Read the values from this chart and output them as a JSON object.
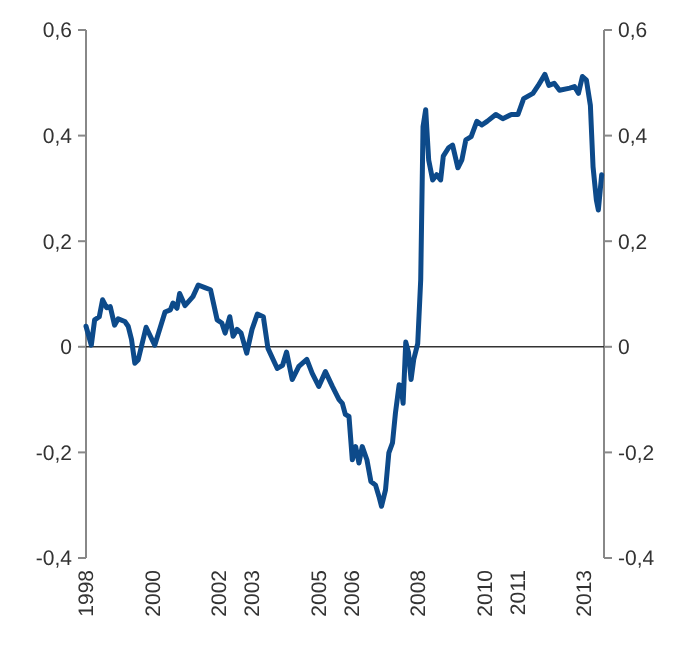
{
  "chart_data": {
    "type": "line",
    "x": [
      1998.0,
      1998.16,
      1998.26,
      1998.4,
      1998.5,
      1998.62,
      1998.73,
      1998.86,
      1998.97,
      1999.17,
      1999.27,
      1999.37,
      1999.47,
      1999.57,
      1999.81,
      2000.07,
      2000.38,
      2000.54,
      2000.62,
      2000.74,
      2000.82,
      2000.98,
      2001.22,
      2001.38,
      2001.58,
      2001.75,
      2001.95,
      2002.09,
      2002.19,
      2002.33,
      2002.43,
      2002.55,
      2002.67,
      2002.84,
      2003.0,
      2003.16,
      2003.34,
      2003.48,
      2003.76,
      2003.92,
      2004.04,
      2004.21,
      2004.41,
      2004.65,
      2004.81,
      2005.01,
      2005.21,
      2005.42,
      2005.62,
      2005.72,
      2005.81,
      2005.92,
      2006.02,
      2006.12,
      2006.22,
      2006.32,
      2006.46,
      2006.58,
      2006.72,
      2006.82,
      2006.9,
      2007.02,
      2007.12,
      2007.23,
      2007.32,
      2007.43,
      2007.49,
      2007.55,
      2007.63,
      2007.71,
      2007.79,
      2007.87,
      2007.99,
      2008.08,
      2008.15,
      2008.23,
      2008.32,
      2008.44,
      2008.56,
      2008.68,
      2008.76,
      2008.92,
      2009.04,
      2009.2,
      2009.32,
      2009.44,
      2009.6,
      2009.77,
      2009.92,
      2010.08,
      2010.34,
      2010.55,
      2010.81,
      2011.01,
      2011.18,
      2011.46,
      2011.62,
      2011.82,
      2011.94,
      2012.1,
      2012.26,
      2012.57,
      2012.71,
      2012.83,
      2012.95,
      2013.07,
      2013.19,
      2013.27,
      2013.37,
      2013.43,
      2013.53
    ],
    "series": [
      {
        "color": "#0d4a8a",
        "values": [
          0.039,
          0.003,
          0.051,
          0.057,
          0.089,
          0.074,
          0.076,
          0.041,
          0.053,
          0.048,
          0.039,
          0.014,
          -0.031,
          -0.025,
          0.037,
          0.003,
          0.066,
          0.07,
          0.083,
          0.073,
          0.101,
          0.078,
          0.095,
          0.117,
          0.112,
          0.108,
          0.051,
          0.045,
          0.026,
          0.057,
          0.02,
          0.033,
          0.026,
          -0.012,
          0.033,
          0.062,
          0.057,
          -0.003,
          -0.041,
          -0.035,
          -0.01,
          -0.062,
          -0.037,
          -0.024,
          -0.05,
          -0.075,
          -0.047,
          -0.075,
          -0.1,
          -0.107,
          -0.128,
          -0.132,
          -0.214,
          -0.189,
          -0.22,
          -0.189,
          -0.214,
          -0.255,
          -0.262,
          -0.283,
          -0.302,
          -0.271,
          -0.201,
          -0.182,
          -0.125,
          -0.072,
          -0.075,
          -0.107,
          0.009,
          -0.01,
          -0.062,
          -0.024,
          0.006,
          0.127,
          0.417,
          0.449,
          0.354,
          0.316,
          0.326,
          0.316,
          0.361,
          0.377,
          0.382,
          0.339,
          0.354,
          0.392,
          0.398,
          0.427,
          0.42,
          0.427,
          0.44,
          0.432,
          0.44,
          0.44,
          0.47,
          0.48,
          0.495,
          0.516,
          0.495,
          0.499,
          0.486,
          0.49,
          0.493,
          0.48,
          0.512,
          0.505,
          0.457,
          0.341,
          0.278,
          0.259,
          0.326
        ]
      }
    ],
    "xlim": [
      1998,
      2013.6
    ],
    "xticks": [
      1998,
      2000,
      2002,
      2003,
      2005,
      2006,
      2008,
      2010,
      2011,
      2013
    ],
    "ylim": [
      -0.4,
      0.6
    ],
    "yticks": [
      {
        "value": -0.4,
        "label": "-0,4"
      },
      {
        "value": -0.2,
        "label": "-0,2"
      },
      {
        "value": 0,
        "label": "0"
      },
      {
        "value": 0.2,
        "label": "0,2"
      },
      {
        "value": 0.4,
        "label": "0,4"
      },
      {
        "value": 0.6,
        "label": "0,6"
      }
    ],
    "y2lim": [
      -0.4,
      0.6
    ],
    "y2ticks": [
      {
        "value": -0.4,
        "label": "-0,4"
      },
      {
        "value": -0.2,
        "label": "-0,2"
      },
      {
        "value": 0,
        "label": "0"
      },
      {
        "value": 0.2,
        "label": "0,2"
      },
      {
        "value": 0.4,
        "label": "0,4"
      },
      {
        "value": 0.6,
        "label": "0,6"
      }
    ],
    "ref_lines": [
      {
        "axis": "y",
        "value": 0,
        "color": "#333333"
      }
    ],
    "grid": false,
    "marker": "none",
    "line_style": "solid"
  }
}
